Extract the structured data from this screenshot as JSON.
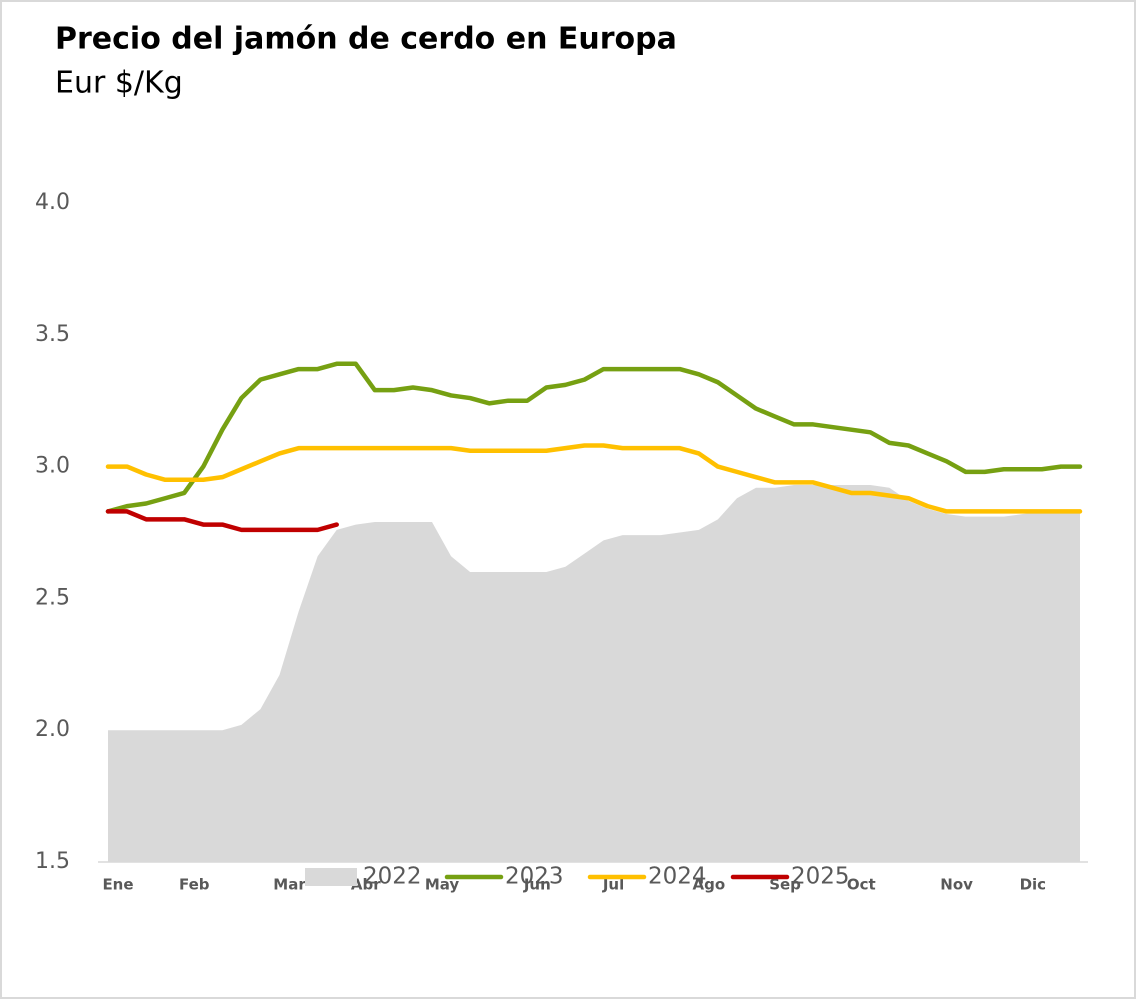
{
  "chart_data": {
    "type": "line",
    "title": "Precio del jamón de cerdo en Europa",
    "subtitle": "Eur $/Kg",
    "categories": [
      "Ene",
      null,
      null,
      null,
      "Feb",
      null,
      null,
      null,
      null,
      "Mar",
      null,
      null,
      null,
      "Abr",
      null,
      null,
      null,
      "May",
      null,
      null,
      null,
      null,
      "Jun",
      null,
      null,
      null,
      "Jul",
      null,
      null,
      null,
      null,
      "Ago",
      null,
      null,
      null,
      "Sep",
      null,
      null,
      null,
      "Oct",
      null,
      null,
      null,
      null,
      "Nov",
      null,
      null,
      null,
      "Dic",
      null,
      null,
      null
    ],
    "ylim": [
      1.5,
      4.0
    ],
    "yticks": [
      {
        "value": 1.5,
        "label": "1.5"
      },
      {
        "value": 2.0,
        "label": "2.0"
      },
      {
        "value": 2.5,
        "label": "2.5"
      },
      {
        "value": 3.0,
        "label": "3.0"
      },
      {
        "value": 3.5,
        "label": "3.5"
      },
      {
        "value": 4.0,
        "label": "4.0"
      }
    ],
    "grid": false,
    "legend": "bottom",
    "series": [
      {
        "name": "2022",
        "type": "area",
        "color": "#d9d9d9",
        "values": [
          2.0,
          2.0,
          2.0,
          2.0,
          2.0,
          2.0,
          2.0,
          2.02,
          2.08,
          2.21,
          2.45,
          2.66,
          2.76,
          2.78,
          2.79,
          2.79,
          2.79,
          2.79,
          2.66,
          2.6,
          2.6,
          2.6,
          2.6,
          2.6,
          2.62,
          2.67,
          2.72,
          2.74,
          2.74,
          2.74,
          2.75,
          2.76,
          2.8,
          2.88,
          2.92,
          2.92,
          2.93,
          2.93,
          2.93,
          2.93,
          2.93,
          2.92,
          2.87,
          2.84,
          2.82,
          2.81,
          2.81,
          2.81,
          2.82,
          2.83,
          2.83,
          2.83
        ]
      },
      {
        "name": "2023",
        "color": "#76a012",
        "values": [
          2.83,
          2.85,
          2.86,
          2.88,
          2.9,
          3.0,
          3.14,
          3.26,
          3.33,
          3.35,
          3.37,
          3.37,
          3.39,
          3.39,
          3.29,
          3.29,
          3.3,
          3.29,
          3.27,
          3.26,
          3.24,
          3.25,
          3.25,
          3.3,
          3.31,
          3.33,
          3.37,
          3.37,
          3.37,
          3.37,
          3.37,
          3.35,
          3.32,
          3.27,
          3.22,
          3.19,
          3.16,
          3.16,
          3.15,
          3.14,
          3.13,
          3.09,
          3.08,
          3.05,
          3.02,
          2.98,
          2.98,
          2.99,
          2.99,
          2.99,
          3.0,
          3.0
        ]
      },
      {
        "name": "2024",
        "color": "#ffc000",
        "values": [
          3.0,
          3.0,
          2.97,
          2.95,
          2.95,
          2.95,
          2.96,
          2.99,
          3.02,
          3.05,
          3.07,
          3.07,
          3.07,
          3.07,
          3.07,
          3.07,
          3.07,
          3.07,
          3.07,
          3.06,
          3.06,
          3.06,
          3.06,
          3.06,
          3.07,
          3.08,
          3.08,
          3.07,
          3.07,
          3.07,
          3.07,
          3.05,
          3.0,
          2.98,
          2.96,
          2.94,
          2.94,
          2.94,
          2.92,
          2.9,
          2.9,
          2.89,
          2.88,
          2.85,
          2.83,
          2.83,
          2.83,
          2.83,
          2.83,
          2.83,
          2.83,
          2.83
        ]
      },
      {
        "name": "2025",
        "color": "#c00000",
        "values": [
          2.83,
          2.83,
          2.8,
          2.8,
          2.8,
          2.78,
          2.78,
          2.76,
          2.76,
          2.76,
          2.76,
          2.76,
          2.78,
          null,
          null,
          null,
          null,
          null,
          null,
          null,
          null,
          null,
          null,
          null,
          null,
          null,
          null,
          null,
          null,
          null,
          null,
          null,
          null,
          null,
          null,
          null,
          null,
          null,
          null,
          null,
          null,
          null,
          null,
          null,
          null,
          null,
          null,
          null,
          null,
          null,
          null,
          null
        ]
      }
    ]
  }
}
